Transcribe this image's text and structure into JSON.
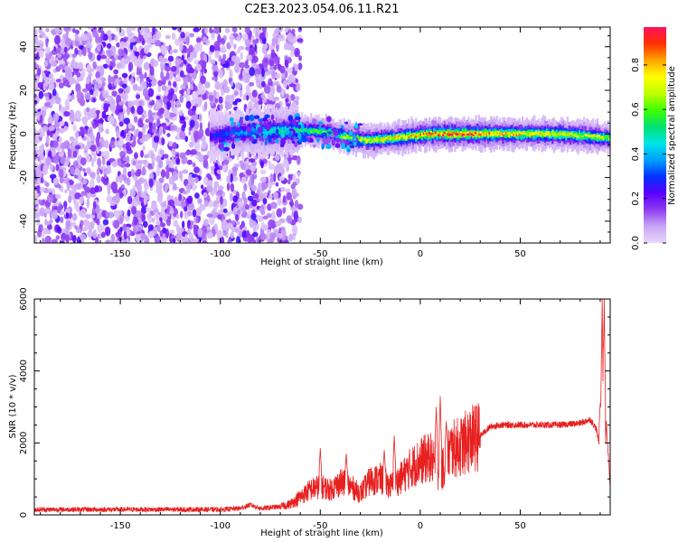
{
  "title": "C2E3.2023.054.06.11.R21",
  "chart_data": [
    {
      "type": "heatmap",
      "xlabel": "Height of straight line (km)",
      "ylabel": "Frequency (Hz)",
      "xlim": [
        -193,
        95
      ],
      "ylim": [
        -50,
        49
      ],
      "xticks": [
        -150,
        -100,
        -50,
        0,
        50
      ],
      "yticks": [
        -40,
        -20,
        0,
        20,
        40
      ],
      "colorbar": {
        "label": "Normalized spectral amplitude",
        "range": [
          0,
          0.97
        ],
        "ticks": [
          0.0,
          0.2,
          0.4,
          0.6,
          0.8
        ],
        "colormap": [
          "#e9d6fb",
          "#c9a6f5",
          "#8f3cf0",
          "#5a00ff",
          "#0033ff",
          "#00a0ff",
          "#00e5e5",
          "#00e070",
          "#40ff00",
          "#bfff00",
          "#ffff00",
          "#ffa500",
          "#ff3000",
          "#ff1060"
        ]
      },
      "noise_region": {
        "x_from": -193,
        "x_to": -66
      },
      "ridge": {
        "x": [
          -105,
          -95,
          -85,
          -75,
          -65,
          -55,
          -45,
          -35,
          -25,
          -15,
          -5,
          5,
          15,
          25,
          35,
          45,
          55,
          65,
          75,
          85,
          95
        ],
        "freq": [
          -1,
          0,
          1,
          1.5,
          1.5,
          1.5,
          0.5,
          -2,
          -3,
          -2,
          -1,
          0,
          0,
          0,
          0,
          0,
          0,
          0,
          -0.5,
          -1,
          -2
        ],
        "peak_amplitude": [
          0.25,
          0.35,
          0.4,
          0.45,
          0.5,
          0.55,
          0.6,
          0.65,
          0.7,
          0.72,
          0.75,
          0.85,
          0.9,
          0.85,
          0.8,
          0.75,
          0.75,
          0.75,
          0.7,
          0.7,
          0.65
        ]
      }
    },
    {
      "type": "line",
      "xlabel": "Height of straight line (km)",
      "ylabel": "SNR (10 * v/v)",
      "xlim": [
        -193,
        95
      ],
      "ylim": [
        0,
        6000
      ],
      "xticks": [
        -150,
        -100,
        -50,
        0,
        50
      ],
      "yticks": [
        0,
        2000,
        4000,
        6000
      ],
      "line_color": "#e82020",
      "series": [
        {
          "x": [
            -193,
            -180,
            -160,
            -140,
            -120,
            -100,
            -90,
            -85,
            -80,
            -70,
            -65,
            -60,
            -55,
            -50,
            -45,
            -40,
            -35,
            -30,
            -25,
            -20,
            -15,
            -10,
            -5,
            0,
            5,
            10,
            15,
            20,
            25,
            30,
            35,
            40,
            50,
            60,
            70,
            80,
            85,
            88,
            90,
            91,
            92,
            93,
            95
          ],
          "y": [
            150,
            150,
            150,
            150,
            150,
            150,
            180,
            280,
            180,
            230,
            300,
            500,
            700,
            800,
            700,
            900,
            800,
            600,
            950,
            1000,
            800,
            1000,
            1300,
            1500,
            1600,
            1100,
            1800,
            1900,
            2100,
            2200,
            2450,
            2500,
            2500,
            2500,
            2500,
            2550,
            2650,
            2400,
            1800,
            6000,
            400,
            2600,
            800
          ],
          "spikes": [
            {
              "x": -50,
              "y": 1850
            },
            {
              "x": -37,
              "y": 1700
            },
            {
              "x": -18,
              "y": 1800
            },
            {
              "x": -13,
              "y": 2200
            },
            {
              "x": 8,
              "y": 3000
            },
            {
              "x": 10,
              "y": 3300
            },
            {
              "x": 13,
              "y": 2600
            },
            {
              "x": 90,
              "y": 3100
            },
            {
              "x": 92,
              "y": 6000
            }
          ]
        }
      ]
    }
  ]
}
